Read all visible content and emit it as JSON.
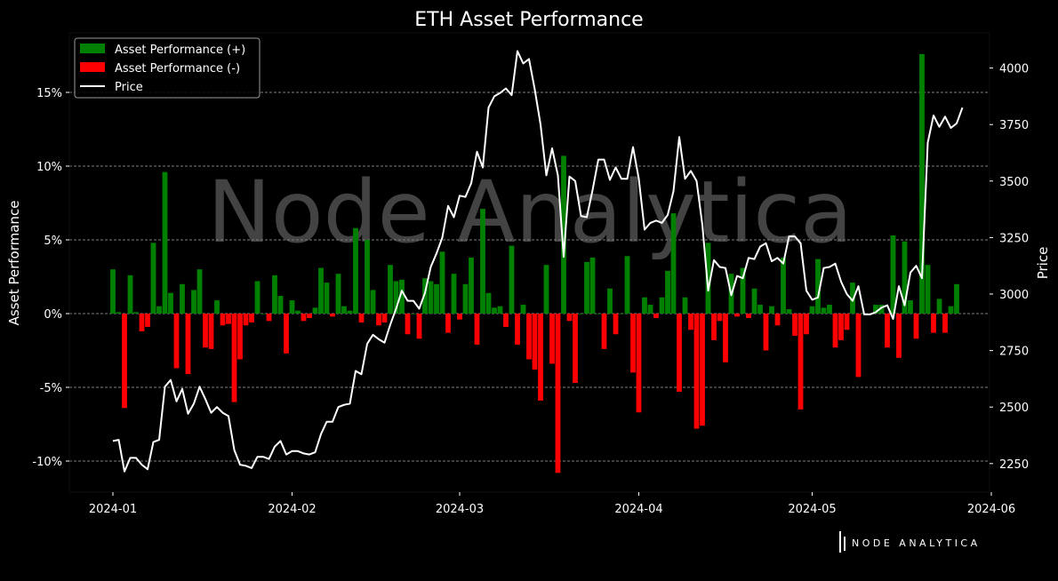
{
  "chart_data": {
    "type": "bar",
    "title": "ETH Asset Performance",
    "ylabel": "Asset Performance",
    "y2label": "Price",
    "ylim": [
      -12.2,
      19.0
    ],
    "y2lim": [
      2160,
      4150
    ],
    "x_start": "2024-01-01",
    "y_ticks": [
      -10,
      -5,
      0,
      5,
      10,
      15
    ],
    "y_tick_labels": [
      "-10%",
      "-5%",
      "0%",
      "5%",
      "10%",
      "15%"
    ],
    "y2_ticks": [
      2250,
      2500,
      2750,
      3000,
      3250,
      3500,
      3750,
      4000
    ],
    "y2_tick_labels": [
      "2250",
      "2500",
      "2750",
      "3000",
      "3250",
      "3500",
      "3750",
      "4000"
    ],
    "x_ticks": [
      "2024-01-01",
      "2024-02-01",
      "2024-03-01",
      "2024-04-01",
      "2024-05-01",
      "2024-06-01"
    ],
    "x_tick_labels": [
      "2024-01",
      "2024-02",
      "2024-03",
      "2024-04",
      "2024-05",
      "2024-06"
    ],
    "grid": "horizontal-dashed",
    "legend": {
      "position": "top-left",
      "entries": [
        "Asset Performance (+)",
        "Asset Performance (-)",
        "Price"
      ]
    },
    "colors": {
      "positive": "#008000",
      "negative": "#ff0000",
      "price": "#ffffff",
      "background": "#000000"
    },
    "series": [
      {
        "name": "Asset Performance",
        "values": [
          3.0,
          0.1,
          -6.4,
          2.6,
          0.1,
          -1.2,
          -0.9,
          4.8,
          0.5,
          9.6,
          1.4,
          -3.7,
          2.0,
          -4.1,
          1.6,
          3.0,
          -2.3,
          -2.4,
          0.9,
          -0.8,
          -0.7,
          -6.0,
          -3.1,
          -0.8,
          -0.6,
          2.2,
          0.0,
          -0.5,
          2.6,
          1.2,
          -2.7,
          0.9,
          0.2,
          -0.5,
          -0.3,
          0.4,
          3.1,
          2.1,
          -0.2,
          2.7,
          0.5,
          0.2,
          5.8,
          -0.6,
          5.0,
          1.6,
          -0.8,
          -0.6,
          3.3,
          2.2,
          2.3,
          -1.4,
          0.0,
          -1.7,
          2.4,
          2.2,
          2.0,
          4.2,
          -1.3,
          2.7,
          -0.4,
          2.0,
          3.8,
          -2.1,
          7.1,
          1.4,
          0.4,
          0.5,
          -0.9,
          4.6,
          -2.1,
          0.6,
          -3.1,
          -3.8,
          -5.9,
          3.3,
          -3.4,
          -10.8,
          10.7,
          -0.5,
          -4.7,
          0.0,
          3.5,
          3.8,
          0.0,
          -2.4,
          1.7,
          -1.4,
          0.0,
          3.9,
          -4.0,
          -6.7,
          1.1,
          0.6,
          -0.3,
          1.1,
          2.9,
          6.8,
          -5.3,
          1.1,
          -1.1,
          -7.8,
          -7.6,
          4.8,
          -1.8,
          -0.5,
          -3.3,
          2.7,
          -0.2,
          3.1,
          -0.3,
          1.7,
          0.6,
          -2.5,
          0.5,
          -0.8,
          3.8,
          0.3,
          -1.5,
          -6.5,
          -1.4,
          0.5,
          3.7,
          0.4,
          0.6,
          -2.3,
          -1.8,
          -1.1,
          2.1,
          -4.3,
          0.0,
          0.0,
          0.6,
          0.6,
          -2.3,
          5.3,
          -3.0,
          4.9,
          0.9,
          -1.7,
          17.6,
          3.3,
          -1.3,
          1.0,
          -1.3,
          0.5,
          2.0
        ]
      },
      {
        "name": "Price",
        "values": [
          2350,
          2355,
          2215,
          2275,
          2275,
          2245,
          2225,
          2345,
          2355,
          2590,
          2620,
          2525,
          2580,
          2470,
          2515,
          2590,
          2535,
          2475,
          2500,
          2475,
          2460,
          2310,
          2245,
          2240,
          2230,
          2280,
          2280,
          2270,
          2325,
          2350,
          2290,
          2305,
          2305,
          2295,
          2290,
          2300,
          2380,
          2435,
          2435,
          2500,
          2510,
          2515,
          2660,
          2645,
          2780,
          2820,
          2800,
          2785,
          2865,
          2935,
          3015,
          2970,
          2970,
          2935,
          3005,
          3120,
          3180,
          3250,
          3390,
          3340,
          3435,
          3430,
          3490,
          3630,
          3560,
          3825,
          3875,
          3890,
          3910,
          3880,
          4075,
          4020,
          4040,
          3905,
          3750,
          3525,
          3645,
          3525,
          3165,
          3520,
          3500,
          3345,
          3340,
          3460,
          3595,
          3595,
          3505,
          3560,
          3510,
          3510,
          3650,
          3510,
          3285,
          3315,
          3325,
          3315,
          3350,
          3455,
          3695,
          3510,
          3545,
          3500,
          3305,
          3015,
          3150,
          3120,
          3115,
          2995,
          3080,
          3070,
          3160,
          3155,
          3210,
          3225,
          3145,
          3160,
          3135,
          3255,
          3255,
          3225,
          3015,
          2975,
          2985,
          3115,
          3120,
          3135,
          3055,
          3000,
          2970,
          3035,
          2910,
          2910,
          2920,
          2940,
          2950,
          2890,
          3035,
          2950,
          3095,
          3125,
          3070,
          3670,
          3790,
          3740,
          3785,
          3735,
          3755,
          3825
        ]
      }
    ]
  },
  "watermark": "Node Analytica",
  "logo": "NODE ANALYTICA"
}
